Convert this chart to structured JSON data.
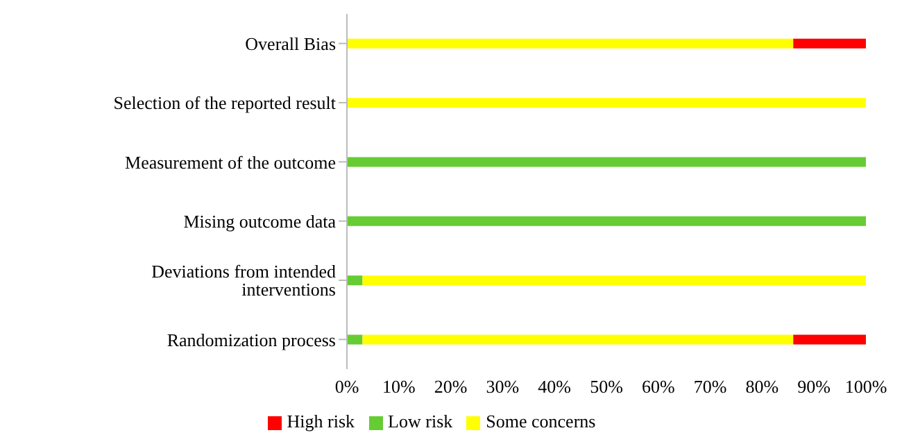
{
  "chart_data": {
    "type": "bar",
    "orientation": "horizontal",
    "stacked": true,
    "categories": [
      "Overall Bias",
      "Selection of the reported result",
      "Measurement of the outcome",
      "Mising outcome data",
      "Deviations from intended interventions",
      "Randomization process"
    ],
    "series": [
      {
        "name": "Low risk",
        "color": "#66cc33",
        "values": [
          0,
          0,
          100,
          100,
          3,
          3
        ]
      },
      {
        "name": "Some concerns",
        "color": "#ffff00",
        "values": [
          86,
          100,
          0,
          0,
          97,
          83
        ]
      },
      {
        "name": "High risk",
        "color": "#ff0000",
        "values": [
          14,
          0,
          0,
          0,
          0,
          14
        ]
      }
    ],
    "xlim": [
      0,
      100
    ],
    "xticks": [
      {
        "value": 0,
        "label": "0%"
      },
      {
        "value": 10,
        "label": "10%"
      },
      {
        "value": 20,
        "label": "20%"
      },
      {
        "value": 30,
        "label": "30%"
      },
      {
        "value": 40,
        "label": "40%"
      },
      {
        "value": 50,
        "label": "50%"
      },
      {
        "value": 60,
        "label": "60%"
      },
      {
        "value": 70,
        "label": "70%"
      },
      {
        "value": 80,
        "label": "80%"
      },
      {
        "value": 90,
        "label": "90%"
      },
      {
        "value": 100,
        "label": "100%"
      }
    ],
    "grid": false,
    "legend": "bottom"
  }
}
